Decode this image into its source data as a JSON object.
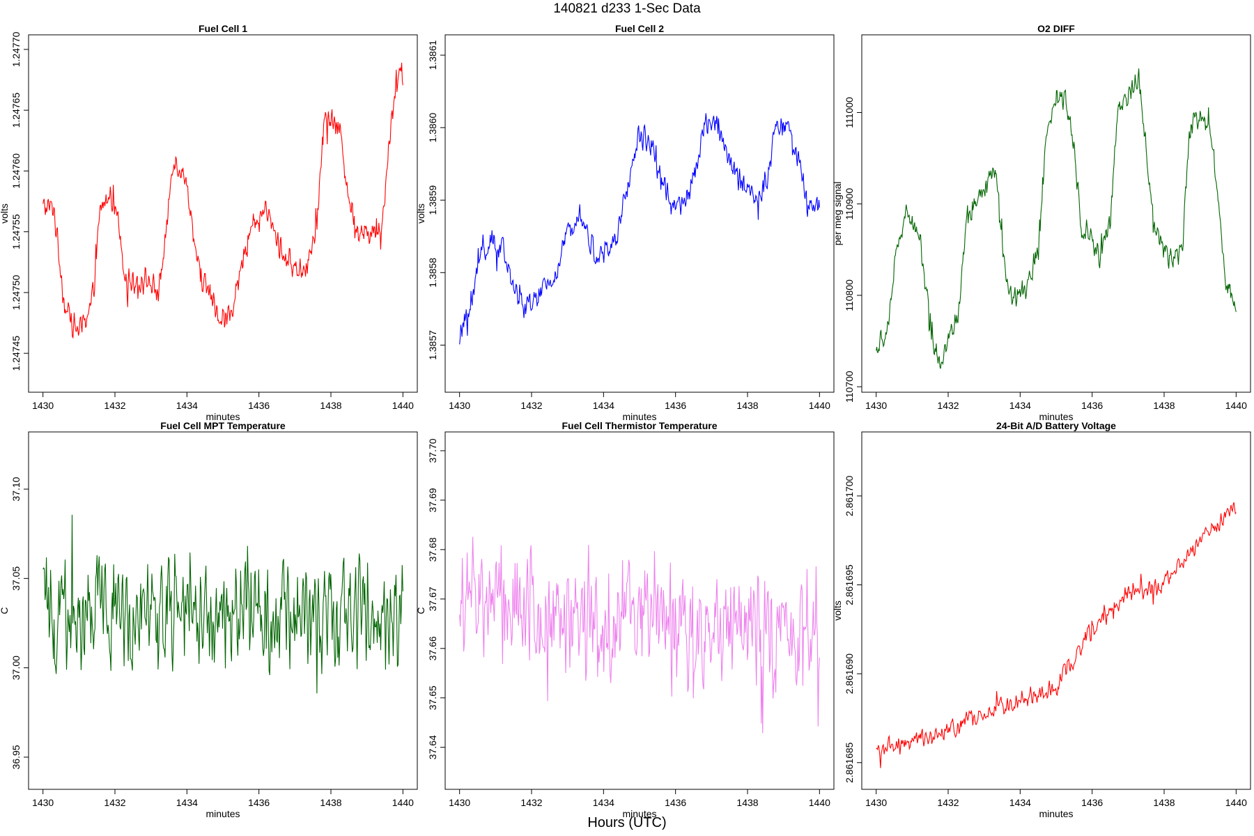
{
  "figure": {
    "title": "140821    d233    1-Sec Data",
    "xlabel": "Hours (UTC)"
  },
  "chart_data": [
    {
      "type": "line",
      "title": "Fuel Cell 1",
      "xlabel": "minutes",
      "ylabel": "volts",
      "color": "#ff0000",
      "xlim": [
        1429.6,
        1440.4
      ],
      "ylim": [
        1.247418,
        1.247712
      ],
      "xticks": [
        1430,
        1432,
        1434,
        1436,
        1438,
        1440
      ],
      "xtick_labels": [
        "1430",
        "1432",
        "1434",
        "1436",
        "1438",
        "1440"
      ],
      "yticks": [
        1.24745,
        1.2475,
        1.24755,
        1.2476,
        1.24765,
        1.2477
      ],
      "ytick_labels": [
        "1.24745",
        "1.24750",
        "1.24755",
        "1.24760",
        "1.24765",
        "1.24770"
      ],
      "series": [
        {
          "shape": [
            [
              1430,
              1.24757
            ],
            [
              1430.3,
              1.24757
            ],
            [
              1430.6,
              1.24749
            ],
            [
              1430.9,
              1.24747
            ],
            [
              1431.2,
              1.24747
            ],
            [
              1431.4,
              1.2475
            ],
            [
              1431.6,
              1.24757
            ],
            [
              1431.9,
              1.24758
            ],
            [
              1432.1,
              1.24756
            ],
            [
              1432.3,
              1.24751
            ],
            [
              1432.6,
              1.24751
            ],
            [
              1432.9,
              1.24751
            ],
            [
              1433.2,
              1.2475
            ],
            [
              1433.4,
              1.24754
            ],
            [
              1433.6,
              1.24761
            ],
            [
              1433.9,
              1.2476
            ],
            [
              1434.1,
              1.24757
            ],
            [
              1434.3,
              1.24752
            ],
            [
              1434.6,
              1.2475
            ],
            [
              1434.9,
              1.24748
            ],
            [
              1435.2,
              1.24748
            ],
            [
              1435.4,
              1.2475
            ],
            [
              1435.7,
              1.24755
            ],
            [
              1436.0,
              1.24756
            ],
            [
              1436.2,
              1.24757
            ],
            [
              1436.4,
              1.24755
            ],
            [
              1436.7,
              1.24753
            ],
            [
              1437.0,
              1.24752
            ],
            [
              1437.3,
              1.24752
            ],
            [
              1437.6,
              1.24755
            ],
            [
              1437.8,
              1.24764
            ],
            [
              1438.1,
              1.24764
            ],
            [
              1438.3,
              1.24763
            ],
            [
              1438.5,
              1.24757
            ],
            [
              1438.8,
              1.24755
            ],
            [
              1439.1,
              1.24755
            ],
            [
              1439.4,
              1.24755
            ],
            [
              1439.6,
              1.24762
            ],
            [
              1439.8,
              1.24767
            ],
            [
              1440.0,
              1.24768
            ]
          ],
          "noise": 2.5e-05,
          "count": 600
        }
      ]
    },
    {
      "type": "line",
      "title": "Fuel Cell 2",
      "xlabel": "minutes",
      "ylabel": "volts",
      "color": "#0000ff",
      "xlim": [
        1429.6,
        1440.4
      ],
      "ylim": [
        1.385635,
        1.386128
      ],
      "xticks": [
        1430,
        1432,
        1434,
        1436,
        1438,
        1440
      ],
      "xtick_labels": [
        "1430",
        "1432",
        "1434",
        "1436",
        "1438",
        "1440"
      ],
      "yticks": [
        1.3857,
        1.3858,
        1.3859,
        1.386,
        1.3861
      ],
      "ytick_labels": [
        "1.3857",
        "1.3858",
        "1.3859",
        "1.3860",
        "1.3861"
      ],
      "series": [
        {
          "shape": [
            [
              1430,
              1.38571
            ],
            [
              1430.3,
              1.38575
            ],
            [
              1430.6,
              1.38583
            ],
            [
              1430.9,
              1.38584
            ],
            [
              1431.2,
              1.38583
            ],
            [
              1431.5,
              1.38578
            ],
            [
              1431.8,
              1.38575
            ],
            [
              1432.1,
              1.38576
            ],
            [
              1432.4,
              1.38578
            ],
            [
              1432.7,
              1.3858
            ],
            [
              1433.0,
              1.38585
            ],
            [
              1433.3,
              1.38589
            ],
            [
              1433.5,
              1.38586
            ],
            [
              1433.8,
              1.38582
            ],
            [
              1434.1,
              1.38583
            ],
            [
              1434.4,
              1.38585
            ],
            [
              1434.7,
              1.38593
            ],
            [
              1435.0,
              1.38599
            ],
            [
              1435.3,
              1.38598
            ],
            [
              1435.6,
              1.38593
            ],
            [
              1435.9,
              1.38589
            ],
            [
              1436.2,
              1.38589
            ],
            [
              1436.5,
              1.38593
            ],
            [
              1436.8,
              1.386
            ],
            [
              1437.1,
              1.38601
            ],
            [
              1437.4,
              1.38597
            ],
            [
              1437.7,
              1.38593
            ],
            [
              1438.0,
              1.38592
            ],
            [
              1438.3,
              1.3859
            ],
            [
              1438.6,
              1.38594
            ],
            [
              1438.8,
              1.38601
            ],
            [
              1439.1,
              1.386
            ],
            [
              1439.4,
              1.38596
            ],
            [
              1439.6,
              1.3859
            ],
            [
              1439.8,
              1.38589
            ],
            [
              1440.0,
              1.38589
            ]
          ],
          "noise": 4e-05,
          "count": 600
        }
      ]
    },
    {
      "type": "line",
      "title": "O2 DIFF",
      "xlabel": "minutes",
      "ylabel": "per meg signal",
      "color": "#006400",
      "xlim": [
        1429.6,
        1440.4
      ],
      "ylim": [
        110694,
        111085
      ],
      "xticks": [
        1430,
        1432,
        1434,
        1436,
        1438,
        1440
      ],
      "xtick_labels": [
        "1430",
        "1432",
        "1434",
        "1436",
        "1438",
        "1440"
      ],
      "yticks": [
        110700,
        110800,
        110900,
        111000
      ],
      "ytick_labels": [
        "110700",
        "110800",
        "110900",
        "111000"
      ],
      "series": [
        {
          "shape": [
            [
              1430,
              110740
            ],
            [
              1430.3,
              110760
            ],
            [
              1430.5,
              110830
            ],
            [
              1430.8,
              110890
            ],
            [
              1431.0,
              110880
            ],
            [
              1431.2,
              110870
            ],
            [
              1431.4,
              110800
            ],
            [
              1431.6,
              110740
            ],
            [
              1431.8,
              110730
            ],
            [
              1432.0,
              110750
            ],
            [
              1432.3,
              110780
            ],
            [
              1432.5,
              110880
            ],
            [
              1432.8,
              110900
            ],
            [
              1433.1,
              110920
            ],
            [
              1433.3,
              110940
            ],
            [
              1433.5,
              110860
            ],
            [
              1433.7,
              110800
            ],
            [
              1434.0,
              110800
            ],
            [
              1434.2,
              110810
            ],
            [
              1434.5,
              110850
            ],
            [
              1434.7,
              110960
            ],
            [
              1435.0,
              111020
            ],
            [
              1435.3,
              111010
            ],
            [
              1435.5,
              110960
            ],
            [
              1435.7,
              110880
            ],
            [
              1436.0,
              110860
            ],
            [
              1436.2,
              110840
            ],
            [
              1436.5,
              110880
            ],
            [
              1436.7,
              111000
            ],
            [
              1437.0,
              111020
            ],
            [
              1437.3,
              111040
            ],
            [
              1437.5,
              110960
            ],
            [
              1437.7,
              110880
            ],
            [
              1438.0,
              110850
            ],
            [
              1438.2,
              110840
            ],
            [
              1438.5,
              110850
            ],
            [
              1438.7,
              110980
            ],
            [
              1439.0,
              111000
            ],
            [
              1439.3,
              110980
            ],
            [
              1439.5,
              110900
            ],
            [
              1439.7,
              110820
            ],
            [
              1440.0,
              110790
            ]
          ],
          "noise": 30,
          "count": 600
        }
      ]
    },
    {
      "type": "line",
      "title": "Fuel Cell MPT Temperature",
      "xlabel": "minutes",
      "ylabel": "C",
      "color": "#006400",
      "xlim": [
        1429.6,
        1440.4
      ],
      "ylim": [
        36.932,
        37.132
      ],
      "xticks": [
        1430,
        1432,
        1434,
        1436,
        1438,
        1440
      ],
      "xtick_labels": [
        "1430",
        "1432",
        "1434",
        "1436",
        "1438",
        "1440"
      ],
      "yticks": [
        36.95,
        37.0,
        37.05,
        37.1
      ],
      "ytick_labels": [
        "36.95",
        "37.00",
        "37.05",
        "37.10"
      ],
      "series": [
        {
          "shape": [
            [
              1430,
              37.03
            ],
            [
              1440,
              37.03
            ]
          ],
          "noise": 0.075,
          "count": 520
        }
      ]
    },
    {
      "type": "line",
      "title": "Fuel Cell Thermistor Temperature",
      "xlabel": "minutes",
      "ylabel": "C",
      "color": "#ee82ee",
      "xlim": [
        1429.6,
        1440.4
      ],
      "ylim": [
        37.6315,
        37.7038
      ],
      "xticks": [
        1430,
        1432,
        1434,
        1436,
        1438,
        1440
      ],
      "xtick_labels": [
        "1430",
        "1432",
        "1434",
        "1436",
        "1438",
        "1440"
      ],
      "yticks": [
        37.64,
        37.65,
        37.66,
        37.67,
        37.68,
        37.69,
        37.7
      ],
      "ytick_labels": [
        "37.64",
        "37.65",
        "37.66",
        "37.67",
        "37.68",
        "37.69",
        "37.70"
      ],
      "series": [
        {
          "shape": [
            [
              1430,
              37.671
            ],
            [
              1432,
              37.668
            ],
            [
              1434,
              37.666
            ],
            [
              1436,
              37.664
            ],
            [
              1438,
              37.663
            ],
            [
              1440,
              37.662
            ]
          ],
          "noise": 0.028,
          "count": 520
        }
      ]
    },
    {
      "type": "line",
      "title": "24-Bit A/D Battery Voltage",
      "xlabel": "minutes",
      "ylabel": "volts",
      "color": "#ff0000",
      "xlim": [
        1429.6,
        1440.4
      ],
      "ylim": [
        2.8616835,
        2.8617036
      ],
      "xticks": [
        1430,
        1432,
        1434,
        1436,
        1438,
        1440
      ],
      "xtick_labels": [
        "1430",
        "1432",
        "1434",
        "1436",
        "1438",
        "1440"
      ],
      "yticks": [
        2.861685,
        2.86169,
        2.861695,
        2.8617
      ],
      "ytick_labels": [
        "2.861685",
        "2.861690",
        "2.861695",
        "2.861700"
      ],
      "series": [
        {
          "shape": [
            [
              1430,
              2.8616857
            ],
            [
              1431,
              2.8616862
            ],
            [
              1432,
              2.8616868
            ],
            [
              1433,
              2.8616878
            ],
            [
              1434,
              2.8616885
            ],
            [
              1435,
              2.8616892
            ],
            [
              1436,
              2.8616925
            ],
            [
              1437,
              2.8616945
            ],
            [
              1438,
              2.861695
            ],
            [
              1439,
              2.8616975
            ],
            [
              1440,
              2.8616995
            ]
          ],
          "noise": 1.3e-06,
          "count": 500
        }
      ]
    }
  ]
}
